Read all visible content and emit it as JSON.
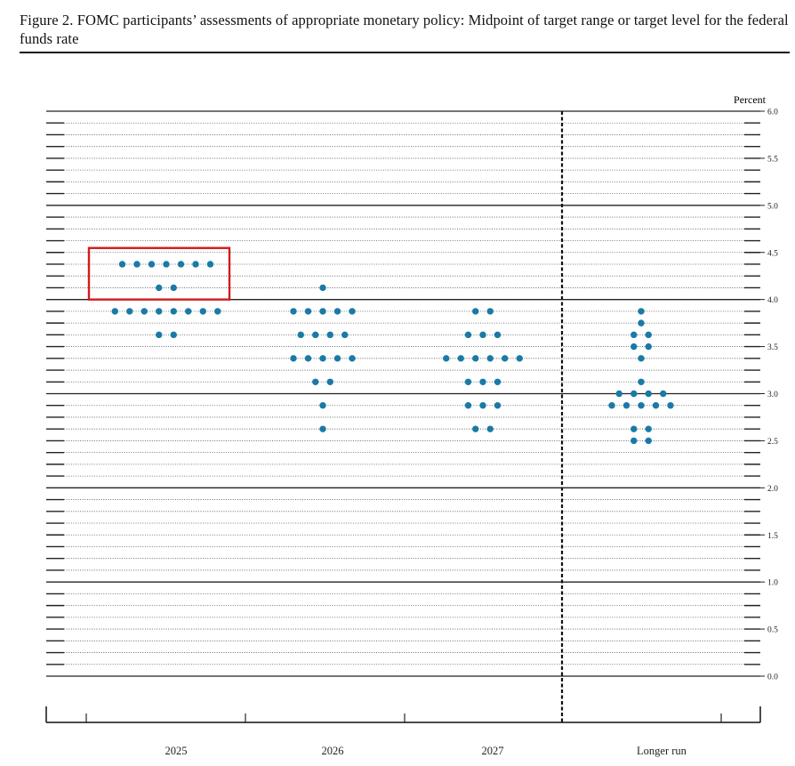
{
  "figure_title": "Figure 2.  FOMC participants’ assessments of appropriate monetary policy: Midpoint of target range or target level for the federal funds rate",
  "chart_data": {
    "type": "scatter",
    "subtype": "dot-plot",
    "unit_label": "Percent",
    "ylim": [
      0.0,
      6.0
    ],
    "y_ticks": [
      "0.0",
      "0.5",
      "1.0",
      "1.5",
      "2.0",
      "2.5",
      "3.0",
      "3.5",
      "4.0",
      "4.5",
      "5.0",
      "5.5",
      "6.0"
    ],
    "y_step": 0.125,
    "categories": [
      "2025",
      "2026",
      "2027",
      "Longer run"
    ],
    "grid": true,
    "dot_color": "#1a7aa6",
    "highlight_color": "#d11c1c",
    "highlight": {
      "category": "2025",
      "y_range": [
        4.0,
        4.5
      ]
    },
    "columns": [
      {
        "label": "2025",
        "dots": [
          {
            "rate": 4.375,
            "count": 7
          },
          {
            "rate": 4.125,
            "count": 2
          },
          {
            "rate": 3.875,
            "count": 8
          },
          {
            "rate": 3.625,
            "count": 2
          }
        ]
      },
      {
        "label": "2026",
        "dots": [
          {
            "rate": 4.125,
            "count": 1
          },
          {
            "rate": 3.875,
            "count": 5
          },
          {
            "rate": 3.625,
            "count": 4
          },
          {
            "rate": 3.375,
            "count": 5
          },
          {
            "rate": 3.125,
            "count": 2
          },
          {
            "rate": 2.875,
            "count": 1
          },
          {
            "rate": 2.625,
            "count": 1
          }
        ]
      },
      {
        "label": "2027",
        "dots": [
          {
            "rate": 3.875,
            "count": 2
          },
          {
            "rate": 3.625,
            "count": 3
          },
          {
            "rate": 3.375,
            "count": 6
          },
          {
            "rate": 3.125,
            "count": 3
          },
          {
            "rate": 2.875,
            "count": 3
          },
          {
            "rate": 2.625,
            "count": 2
          }
        ]
      },
      {
        "label": "Longer run",
        "dots": [
          {
            "rate": 3.875,
            "count": 1
          },
          {
            "rate": 3.75,
            "count": 1
          },
          {
            "rate": 3.625,
            "count": 2
          },
          {
            "rate": 3.5,
            "count": 2
          },
          {
            "rate": 3.375,
            "count": 1
          },
          {
            "rate": 3.125,
            "count": 1
          },
          {
            "rate": 3.0,
            "count": 4
          },
          {
            "rate": 2.875,
            "count": 5
          },
          {
            "rate": 2.625,
            "count": 2
          },
          {
            "rate": 2.5,
            "count": 2
          }
        ]
      }
    ]
  }
}
